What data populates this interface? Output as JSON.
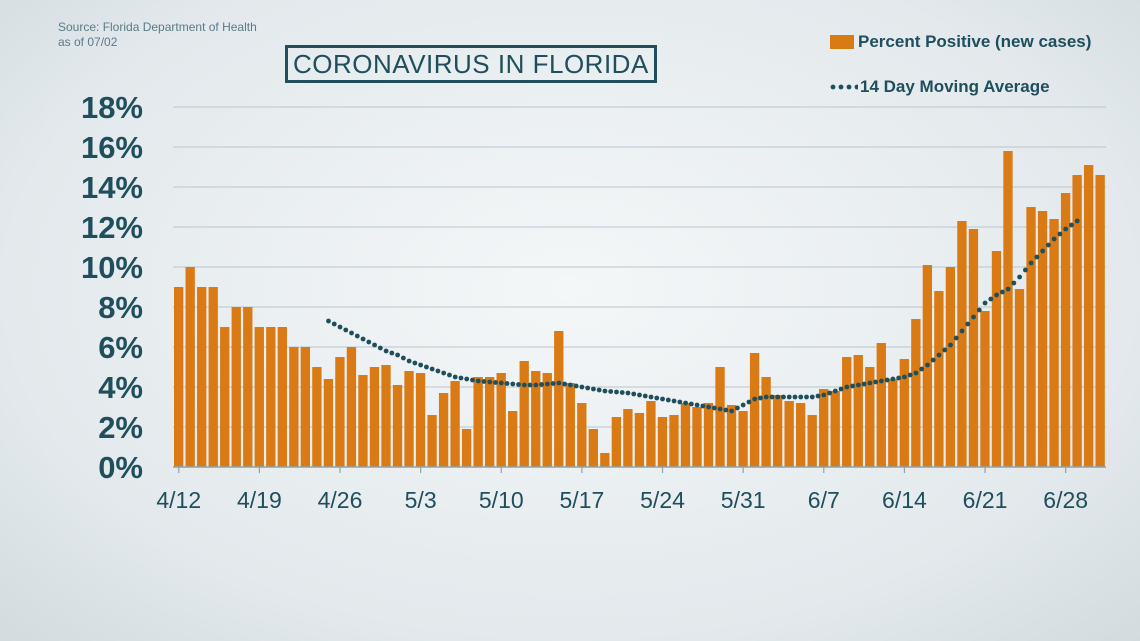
{
  "source": {
    "line1": "Source: Florida Department of Health",
    "line2": "as of 07/02"
  },
  "chart_data": {
    "type": "bar",
    "title": "CORONAVIRUS IN FLORIDA",
    "ylim": [
      0,
      18
    ],
    "y_ticks": [
      "0%",
      "2%",
      "4%",
      "6%",
      "8%",
      "10%",
      "12%",
      "14%",
      "16%",
      "18%"
    ],
    "y_tick_values": [
      0,
      2,
      4,
      6,
      8,
      10,
      12,
      14,
      16,
      18
    ],
    "x_tick_labels": [
      "4/12",
      "4/19",
      "4/26",
      "5/3",
      "5/10",
      "5/17",
      "5/24",
      "5/31",
      "6/7",
      "6/14",
      "6/21",
      "6/28"
    ],
    "x_tick_index": [
      0,
      7,
      14,
      21,
      28,
      35,
      42,
      49,
      56,
      63,
      70,
      77
    ],
    "grid": true,
    "legend": "top-right",
    "colors": {
      "bar": "#d97a14",
      "line": "#1f4e5c"
    },
    "series": [
      {
        "name": "Percent Positive (new cases)",
        "type": "bar",
        "values": [
          9.0,
          10.0,
          9.0,
          9.0,
          7.0,
          8.0,
          8.0,
          7.0,
          7.0,
          7.0,
          6.0,
          6.0,
          5.0,
          4.4,
          5.5,
          6.0,
          4.6,
          5.0,
          5.1,
          4.1,
          4.8,
          4.7,
          2.6,
          3.7,
          4.3,
          1.9,
          4.5,
          4.5,
          4.7,
          2.8,
          5.3,
          4.8,
          4.7,
          6.8,
          4.2,
          3.2,
          1.9,
          0.7,
          2.5,
          2.9,
          2.7,
          3.3,
          2.5,
          2.6,
          3.2,
          3.0,
          3.2,
          5.0,
          3.1,
          2.8,
          5.7,
          4.5,
          3.6,
          3.3,
          3.2,
          2.6,
          3.9,
          3.8,
          5.5,
          5.6,
          5.0,
          6.2,
          4.4,
          5.4,
          7.4,
          10.1,
          8.8,
          10.0,
          12.3,
          11.9,
          7.8,
          10.8,
          15.8,
          8.9,
          13.0,
          12.8,
          12.4,
          13.7,
          14.6,
          15.1,
          14.6
        ]
      },
      {
        "name": "14 Day Moving Average",
        "type": "line",
        "start_index": 13,
        "values": [
          7.3,
          7.0,
          6.7,
          6.4,
          6.1,
          5.8,
          5.6,
          5.3,
          5.1,
          4.9,
          4.7,
          4.5,
          4.4,
          4.3,
          4.25,
          4.2,
          4.15,
          4.1,
          4.1,
          4.15,
          4.2,
          4.1,
          4.0,
          3.9,
          3.8,
          3.75,
          3.7,
          3.6,
          3.5,
          3.4,
          3.3,
          3.2,
          3.1,
          3.0,
          2.9,
          2.8,
          3.1,
          3.4,
          3.5,
          3.5,
          3.5,
          3.5,
          3.5,
          3.6,
          3.8,
          4.0,
          4.1,
          4.2,
          4.3,
          4.4,
          4.5,
          4.7,
          5.1,
          5.6,
          6.1,
          6.8,
          7.5,
          8.2,
          8.6,
          8.9,
          9.5,
          10.2,
          10.8,
          11.4,
          11.9,
          12.3
        ]
      }
    ]
  }
}
